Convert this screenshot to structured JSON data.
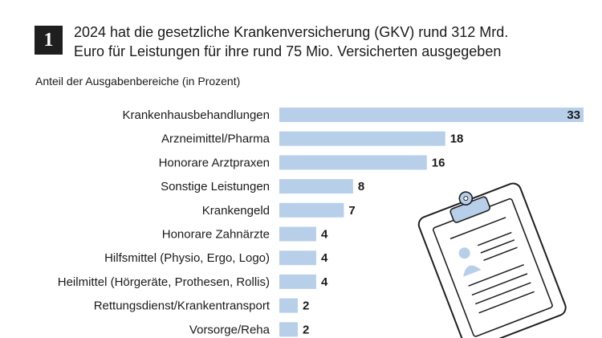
{
  "header": {
    "badge": "1",
    "title_line1": "2024 hat die gesetzliche Krankenversicherung (GKV) rund 312 Mrd.",
    "title_line2": "Euro für Leistungen für ihre rund 75 Mio. Versicherten ausgegeben"
  },
  "chart_data": {
    "type": "bar",
    "orientation": "horizontal",
    "title": "2024 hat die gesetzliche Krankenversicherung (GKV) rund 312 Mrd. Euro für Leistungen für ihre rund 75 Mio. Versicherten ausgegeben",
    "subtitle": "Anteil der Ausgabenbereiche (in Prozent)",
    "categories": [
      "Krankenhausbehandlungen",
      "Arzneimittel/Pharma",
      "Honorare Arztpraxen",
      "Sonstige Leistungen",
      "Krankengeld",
      "Honorare Zahnärzte",
      "Hilfsmittel (Physio, Ergo, Logo)",
      "Heilmittel (Hörgeräte, Prothesen, Rollis)",
      "Rettungsdienst/Krankentransport",
      "Vorsorge/Reha"
    ],
    "values": [
      33,
      18,
      16,
      8,
      7,
      4,
      4,
      4,
      2,
      2
    ],
    "xlim": [
      0,
      33
    ],
    "grid": false,
    "legend": "none",
    "bar_color": "#b8cfea"
  },
  "decoration": {
    "icon": "clipboard-icon",
    "icon_fill": "#b8cfea"
  }
}
